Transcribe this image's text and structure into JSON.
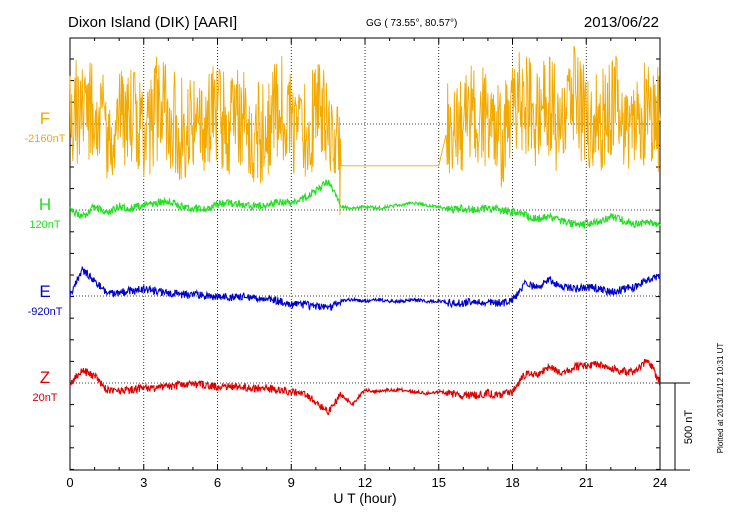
{
  "header": {
    "station": "Dixon Island (DIK)  [AARI]",
    "coords": "GG ( 73.55°,  80.57°)",
    "date": "2013/06/22"
  },
  "footer": {
    "plotted": "Plotted at 2013/11/12 10:31  UT"
  },
  "chart_data": {
    "type": "line",
    "xlabel": "U T (hour)",
    "xlim": [
      0,
      24
    ],
    "xticks": [
      "0",
      "3",
      "6",
      "9",
      "12",
      "15",
      "18",
      "21",
      "24"
    ],
    "scale_bar": {
      "label": "500 nT",
      "value_nT": 500
    },
    "colors": {
      "F": "#f2a900",
      "H": "#22e022",
      "E": "#0000d0",
      "Z": "#e00000"
    },
    "series": [
      {
        "name": "F",
        "baseline": "-2160nT",
        "x": [
          0,
          0.5,
          1,
          1.5,
          2,
          2.5,
          3,
          3.5,
          4,
          4.5,
          5,
          5.5,
          6,
          6.5,
          7,
          7.5,
          8,
          8.5,
          9,
          9.5,
          10,
          10.5,
          11,
          11.5,
          12,
          12.5,
          13,
          13.5,
          14,
          14.5,
          15,
          15.5,
          16,
          16.5,
          17,
          17.5,
          18,
          18.5,
          19,
          19.5,
          20,
          20.5,
          21,
          21.5,
          22,
          22.5,
          23,
          23.5,
          24
        ],
        "y": [
          -2160,
          -2040,
          -2100,
          -2220,
          -2080,
          -2140,
          -2240,
          -2060,
          -2120,
          -2200,
          -2100,
          -2160,
          -2080,
          -2180,
          -2120,
          -2240,
          -2160,
          -2060,
          -2140,
          -2200,
          -2100,
          -2080,
          -2400,
          -2400,
          -2400,
          -2400,
          -2400,
          -2400,
          -2400,
          -2400,
          -2400,
          -2100,
          -2180,
          -2060,
          -2160,
          -2240,
          -2080,
          -2020,
          -2140,
          -2060,
          -2180,
          -2020,
          -2100,
          -2160,
          -2040,
          -2120,
          -2180,
          -2060,
          -2140
        ]
      },
      {
        "name": "H",
        "baseline": "120nT",
        "x": [
          0,
          0.5,
          1,
          1.5,
          2,
          2.5,
          3,
          3.5,
          4,
          4.5,
          5,
          5.5,
          6,
          6.5,
          7,
          7.5,
          8,
          8.5,
          9,
          9.5,
          10,
          10.5,
          11,
          11.5,
          12,
          12.5,
          13,
          13.5,
          14,
          14.5,
          15,
          15.5,
          16,
          16.5,
          17,
          17.5,
          18,
          18.5,
          19,
          19.5,
          20,
          20.5,
          21,
          21.5,
          22,
          22.5,
          23,
          23.5,
          24
        ],
        "y": [
          120,
          80,
          140,
          100,
          140,
          130,
          150,
          160,
          170,
          140,
          130,
          120,
          150,
          160,
          150,
          140,
          150,
          170,
          160,
          190,
          230,
          290,
          140,
          130,
          140,
          130,
          140,
          150,
          160,
          150,
          140,
          120,
          130,
          120,
          130,
          120,
          110,
          90,
          70,
          80,
          60,
          40,
          40,
          50,
          80,
          60,
          40,
          50,
          40
        ]
      },
      {
        "name": "E",
        "baseline": "-920nT",
        "x": [
          0,
          0.5,
          1,
          1.5,
          2,
          2.5,
          3,
          3.5,
          4,
          4.5,
          5,
          5.5,
          6,
          6.5,
          7,
          7.5,
          8,
          8.5,
          9,
          9.5,
          10,
          10.5,
          11,
          11.5,
          12,
          12.5,
          13,
          13.5,
          14,
          14.5,
          15,
          15.5,
          16,
          16.5,
          17,
          17.5,
          18,
          18.5,
          19,
          19.5,
          20,
          20.5,
          21,
          21.5,
          22,
          22.5,
          23,
          23.5,
          24
        ],
        "y": [
          -920,
          -770,
          -830,
          -910,
          -900,
          -890,
          -880,
          -890,
          -900,
          -910,
          -910,
          -920,
          -920,
          -930,
          -920,
          -930,
          -940,
          -950,
          -970,
          -970,
          -980,
          -990,
          -950,
          -940,
          -950,
          -940,
          -950,
          -950,
          -940,
          -950,
          -950,
          -960,
          -960,
          -950,
          -960,
          -960,
          -950,
          -850,
          -870,
          -830,
          -860,
          -880,
          -870,
          -880,
          -900,
          -880,
          -870,
          -820,
          -810
        ]
      },
      {
        "name": "Z",
        "baseline": "20nT",
        "x": [
          0,
          0.5,
          1,
          1.5,
          2,
          2.5,
          3,
          3.5,
          4,
          4.5,
          5,
          5.5,
          6,
          6.5,
          7,
          7.5,
          8,
          8.5,
          9,
          9.5,
          10,
          10.5,
          11,
          11.5,
          12,
          12.5,
          13,
          13.5,
          14,
          14.5,
          15,
          15.5,
          16,
          16.5,
          17,
          17.5,
          18,
          18.5,
          19,
          19.5,
          20,
          20.5,
          21,
          21.5,
          22,
          22.5,
          23,
          23.5,
          24
        ],
        "y": [
          20,
          90,
          60,
          -20,
          -30,
          -20,
          -10,
          -10,
          0,
          10,
          10,
          10,
          0,
          0,
          0,
          -10,
          -10,
          -20,
          -30,
          -40,
          -90,
          -150,
          -50,
          -100,
          -20,
          -30,
          -20,
          -20,
          -30,
          -40,
          -30,
          -40,
          -50,
          -50,
          -40,
          -50,
          -30,
          70,
          70,
          110,
          80,
          110,
          120,
          130,
          100,
          90,
          80,
          160,
          20
        ]
      }
    ]
  }
}
